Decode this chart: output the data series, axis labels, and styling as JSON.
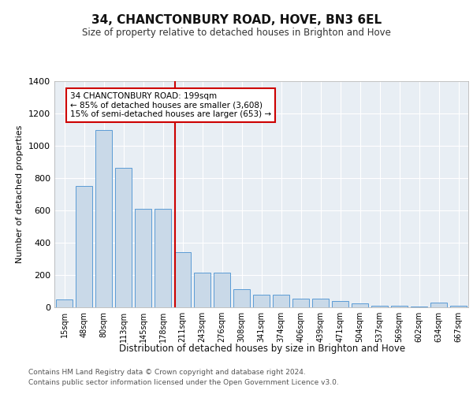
{
  "title": "34, CHANCTONBURY ROAD, HOVE, BN3 6EL",
  "subtitle": "Size of property relative to detached houses in Brighton and Hove",
  "xlabel": "Distribution of detached houses by size in Brighton and Hove",
  "ylabel": "Number of detached properties",
  "categories": [
    "15sqm",
    "48sqm",
    "80sqm",
    "113sqm",
    "145sqm",
    "178sqm",
    "211sqm",
    "243sqm",
    "276sqm",
    "308sqm",
    "341sqm",
    "374sqm",
    "406sqm",
    "439sqm",
    "471sqm",
    "504sqm",
    "537sqm",
    "569sqm",
    "602sqm",
    "634sqm",
    "667sqm"
  ],
  "values": [
    50,
    750,
    1095,
    860,
    610,
    610,
    340,
    215,
    215,
    110,
    80,
    80,
    55,
    55,
    40,
    25,
    10,
    10,
    5,
    30,
    10
  ],
  "bar_color": "#c9d9e8",
  "bar_edge_color": "#5b9bd5",
  "highlight_label": "34 CHANCTONBURY ROAD: 199sqm\n← 85% of detached houses are smaller (3,608)\n15% of semi-detached houses are larger (653) →",
  "vline_color": "#cc0000",
  "annotation_box_color": "#cc0000",
  "ylim": [
    0,
    1400
  ],
  "yticks": [
    0,
    200,
    400,
    600,
    800,
    1000,
    1200,
    1400
  ],
  "footer1": "Contains HM Land Registry data © Crown copyright and database right 2024.",
  "footer2": "Contains public sector information licensed under the Open Government Licence v3.0.",
  "background_color": "#e8eef4",
  "fig_background": "#ffffff"
}
